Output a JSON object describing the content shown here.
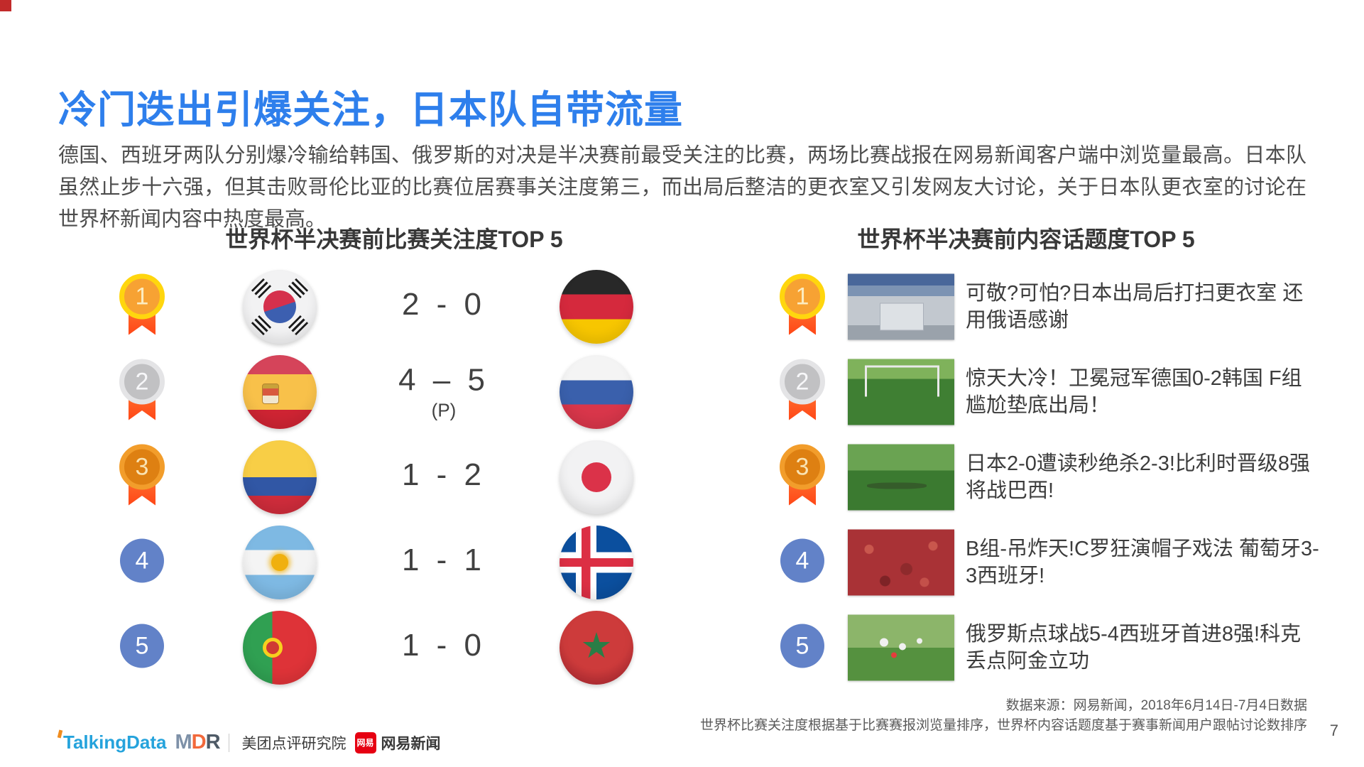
{
  "slide": {
    "title": "冷门迭出引爆关注，日本队自带流量",
    "body_paragraph": "德国、西班牙两队分别爆冷输给韩国、俄罗斯的对决是半决赛前最受关注的比赛，两场比赛战报在网易新闻客户端中浏览量最高。日本队虽然止步十六强，但其击败哥伦比亚的比赛位居赛事关注度第三，而出局后整洁的更衣室又引发网友大讨论，关于日本队更衣室的讨论在世界杯新闻内容中热度最高。",
    "page_number": "7"
  },
  "left_panel": {
    "title": "世界杯半决赛前比赛关注度TOP 5",
    "rows": [
      {
        "rank": "1",
        "team_a_flag": "south-korea-flag",
        "score": "2 - 0",
        "score_note": "",
        "team_b_flag": "germany-flag"
      },
      {
        "rank": "2",
        "team_a_flag": "spain-flag",
        "score": "4 – 5",
        "score_note": "(P)",
        "team_b_flag": "russia-flag"
      },
      {
        "rank": "3",
        "team_a_flag": "colombia-flag",
        "score": "1 - 2",
        "score_note": "",
        "team_b_flag": "japan-flag"
      },
      {
        "rank": "4",
        "team_a_flag": "argentina-flag",
        "score": "1 - 1",
        "score_note": "",
        "team_b_flag": "iceland-flag"
      },
      {
        "rank": "5",
        "team_a_flag": "portugal-flag",
        "score": "1 - 0",
        "score_note": "",
        "team_b_flag": "morocco-flag"
      }
    ]
  },
  "right_panel": {
    "title": "世界杯半决赛前内容话题度TOP 5",
    "rows": [
      {
        "rank": "1",
        "thumbnail": "japan-locker-room-photo",
        "headline": "可敬?可怕?日本出局后打扫更衣室 还用俄语感谢"
      },
      {
        "rank": "2",
        "thumbnail": "germany-korea-match-photo",
        "headline": "惊天大冷！卫冕冠军德国0-2韩国 F组尴尬垫底出局！"
      },
      {
        "rank": "3",
        "thumbnail": "japan-belgium-match-photo",
        "headline": "日本2-0遭读秒绝杀2-3!比利时晋级8强将战巴西!"
      },
      {
        "rank": "4",
        "thumbnail": "portugal-spain-fans-photo",
        "headline": "B组-吊炸天!C罗狂演帽子戏法 葡萄牙3-3西班牙!"
      },
      {
        "rank": "5",
        "thumbnail": "russia-spain-celebration-photo",
        "headline": "俄罗斯点球战5-4西班牙首进8强!科克丢点阿金立功"
      }
    ]
  },
  "footer": {
    "source_line1": "数据来源：网易新闻，2018年6月14日-7月4日数据",
    "source_line2": "世界杯比赛关注度根据基于比赛赛报浏览量排序，世界杯内容话题度基于赛事新闻用户跟帖讨论数排序",
    "logos": {
      "talkingdata": "TalkingData",
      "mdr_m": "M",
      "mdr_d": "D",
      "mdr_r": "R",
      "mdr_label": "美团点评研究院",
      "netease_icon_text": "网易",
      "netease_label": "网易新闻"
    }
  },
  "colors": {
    "title_blue": "#2E7FEC",
    "ribbon_orange": "#FF4E1D",
    "rank_blue": "#6282C8",
    "netease_red": "#E60012"
  }
}
